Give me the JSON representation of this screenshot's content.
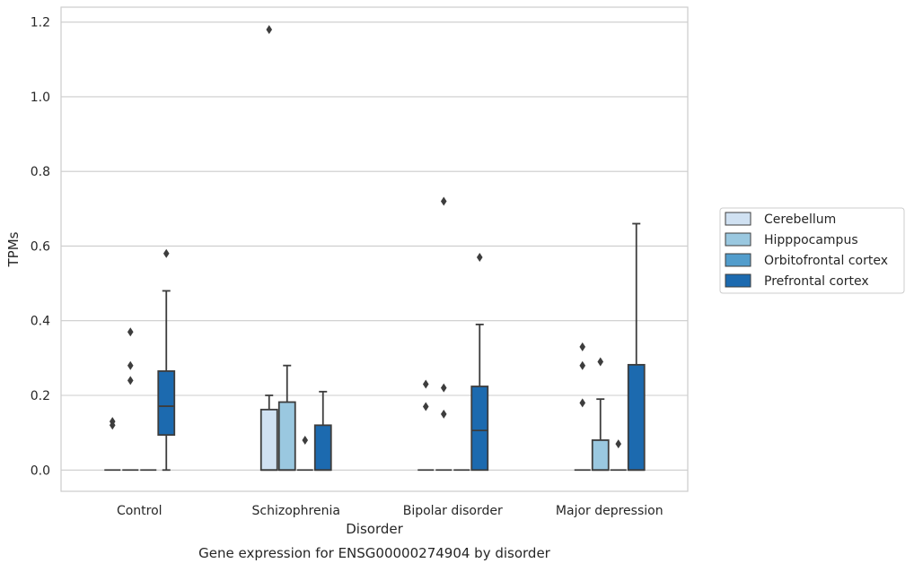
{
  "chart_data": {
    "type": "boxplot",
    "title": "",
    "caption": "Gene expression for ENSG00000274904 by disorder",
    "xlabel": "Disorder",
    "ylabel": "TPMs",
    "categories": [
      "Control",
      "Schizophrenia",
      "Bipolar disorder",
      "Major depression"
    ],
    "yticks": [
      0.0,
      0.2,
      0.4,
      0.6,
      0.8,
      1.0,
      1.2
    ],
    "ytick_labels": [
      "0.0",
      "0.2",
      "0.4",
      "0.6",
      "0.8",
      "1.0",
      "1.2"
    ],
    "ylim": [
      -0.057,
      1.24
    ],
    "grid": "horizontal",
    "legend_position": "right",
    "series": [
      {
        "name": "Cerebellum",
        "color": "#d0e1f2",
        "boxes": [
          {
            "category": "Control",
            "whisker_low": 0,
            "q1": 0,
            "median": 0,
            "q3": 0,
            "whisker_high": 0,
            "outliers": [
              0.13,
              0.12
            ]
          },
          {
            "category": "Schizophrenia",
            "whisker_low": 0,
            "q1": 0,
            "median": 0,
            "q3": 0.162,
            "whisker_high": 0.2,
            "outliers": [
              1.18
            ]
          },
          {
            "category": "Bipolar disorder",
            "whisker_low": 0,
            "q1": 0,
            "median": 0,
            "q3": 0,
            "whisker_high": 0,
            "outliers": [
              0.23,
              0.17
            ]
          },
          {
            "category": "Major depression",
            "whisker_low": 0,
            "q1": 0,
            "median": 0,
            "q3": 0,
            "whisker_high": 0,
            "outliers": [
              0.33,
              0.28,
              0.18
            ]
          }
        ]
      },
      {
        "name": "Hipppocampus",
        "color": "#9ac8e0",
        "boxes": [
          {
            "category": "Control",
            "whisker_low": 0,
            "q1": 0,
            "median": 0,
            "q3": 0,
            "whisker_high": 0,
            "outliers": [
              0.37,
              0.28,
              0.24
            ]
          },
          {
            "category": "Schizophrenia",
            "whisker_low": 0,
            "q1": 0,
            "median": 0,
            "q3": 0.182,
            "whisker_high": 0.28,
            "outliers": []
          },
          {
            "category": "Bipolar disorder",
            "whisker_low": 0,
            "q1": 0,
            "median": 0,
            "q3": 0,
            "whisker_high": 0,
            "outliers": [
              0.72,
              0.22,
              0.15
            ]
          },
          {
            "category": "Major depression",
            "whisker_low": 0,
            "q1": 0,
            "median": 0,
            "q3": 0.08,
            "whisker_high": 0.19,
            "outliers": [
              0.29
            ]
          }
        ]
      },
      {
        "name": "Orbitofrontal cortex",
        "color": "#529dcc",
        "boxes": [
          {
            "category": "Control",
            "whisker_low": 0,
            "q1": 0,
            "median": 0,
            "q3": 0,
            "whisker_high": 0,
            "outliers": []
          },
          {
            "category": "Schizophrenia",
            "whisker_low": 0,
            "q1": 0,
            "median": 0,
            "q3": 0,
            "whisker_high": 0,
            "outliers": [
              0.08
            ]
          },
          {
            "category": "Bipolar disorder",
            "whisker_low": 0,
            "q1": 0,
            "median": 0,
            "q3": 0,
            "whisker_high": 0,
            "outliers": []
          },
          {
            "category": "Major depression",
            "whisker_low": 0,
            "q1": 0,
            "median": 0,
            "q3": 0,
            "whisker_high": 0,
            "outliers": [
              0.07
            ]
          }
        ]
      },
      {
        "name": "Prefrontal cortex",
        "color": "#1c6aaf",
        "boxes": [
          {
            "category": "Control",
            "whisker_low": 0,
            "q1": 0.094,
            "median": 0.171,
            "q3": 0.265,
            "whisker_high": 0.48,
            "outliers": [
              0.58
            ]
          },
          {
            "category": "Schizophrenia",
            "whisker_low": 0,
            "q1": 0,
            "median": 0,
            "q3": 0.12,
            "whisker_high": 0.21,
            "outliers": []
          },
          {
            "category": "Bipolar disorder",
            "whisker_low": 0,
            "q1": 0,
            "median": 0.106,
            "q3": 0.224,
            "whisker_high": 0.39,
            "outliers": [
              0.57
            ]
          },
          {
            "category": "Major depression",
            "whisker_low": 0,
            "q1": 0,
            "median": 0,
            "q3": 0.282,
            "whisker_high": 0.66,
            "outliers": []
          }
        ]
      }
    ],
    "colors": {
      "grid": "#cccccc",
      "axes_edge": "#cccccc",
      "line": "#3d3d3d",
      "text": "#262626"
    }
  }
}
